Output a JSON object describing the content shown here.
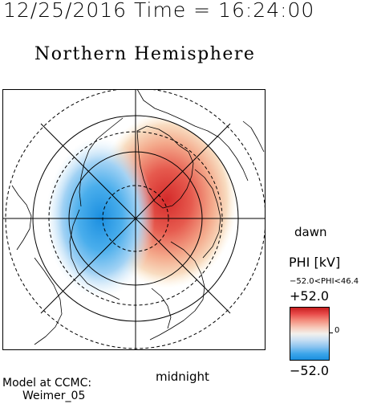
{
  "header": {
    "datetime": "12/25/2016 Time = 16:24:00"
  },
  "plot": {
    "title": "Northern Hemisphere",
    "labels": {
      "right": "dawn",
      "bottom": "midnight"
    }
  },
  "legend": {
    "title": "PHI [kV]",
    "range_text": "−52.0<PHI<46.4",
    "max_label": "+52.0",
    "zero_label": "0",
    "min_label": "−52.0",
    "colors": {
      "positive": "#d42a2a",
      "neutral": "#f3f0ec",
      "negative": "#1b8fe0"
    }
  },
  "credit": {
    "line1": "Model at CCMC:",
    "line2": "Weimer_05"
  }
}
